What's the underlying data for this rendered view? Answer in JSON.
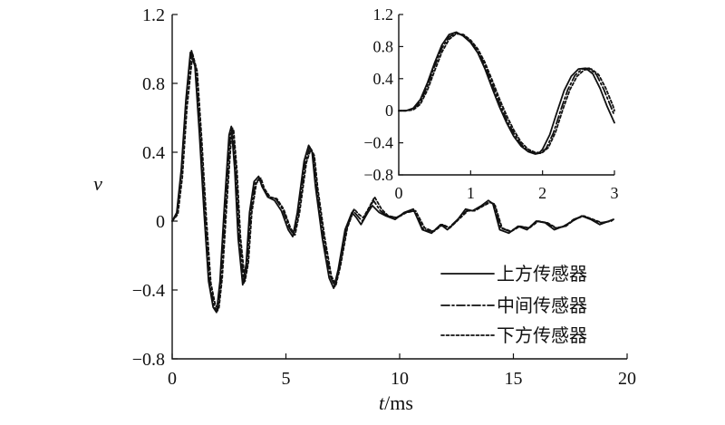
{
  "chart_data": [
    {
      "type": "line",
      "xlabel_italic": "t",
      "xlabel_unit": "/ms",
      "ylabel": "v",
      "xlim": [
        0,
        20
      ],
      "ylim": [
        -0.8,
        1.2
      ],
      "x_ticks": [
        0,
        5,
        10,
        15,
        20
      ],
      "y_ticks": [
        -0.8,
        -0.4,
        0,
        0.4,
        0.8,
        1.2
      ],
      "x_tick_labels": [
        "0",
        "5",
        "10",
        "15",
        "20"
      ],
      "y_tick_labels": [
        "−0.8",
        "−0.4",
        "0",
        "0.4",
        "0.8",
        "1.2"
      ],
      "grid": false,
      "legend_position": "bottom-right",
      "series": [
        {
          "name": "上方传感器",
          "style": "solid",
          "x": [
            0,
            0.2,
            0.4,
            0.6,
            0.8,
            1.0,
            1.2,
            1.4,
            1.6,
            1.8,
            1.95,
            2.1,
            2.3,
            2.5,
            2.6,
            2.75,
            2.9,
            3.1,
            3.25,
            3.4,
            3.6,
            3.8,
            3.95,
            4.2,
            4.5,
            4.8,
            5.1,
            5.3,
            5.5,
            5.8,
            6.0,
            6.15,
            6.3,
            6.6,
            6.9,
            7.1,
            7.3,
            7.6,
            7.9,
            8.1,
            8.3,
            8.6,
            8.8,
            9.1,
            9.4,
            9.8,
            10.2,
            10.6,
            11.0,
            11.4,
            11.8,
            12.1,
            12.5,
            12.9,
            13.2,
            13.6,
            13.9,
            14.1,
            14.4,
            14.8,
            15.2,
            15.6,
            16.0,
            16.4,
            16.8,
            17.2,
            17.6,
            18.0,
            18.4,
            18.8,
            19.2,
            19.4
          ],
          "y": [
            0,
            0.05,
            0.3,
            0.7,
            0.98,
            0.9,
            0.5,
            0.05,
            -0.35,
            -0.5,
            -0.53,
            -0.35,
            0.1,
            0.5,
            0.55,
            0.3,
            -0.1,
            -0.37,
            -0.25,
            0.05,
            0.23,
            0.26,
            0.2,
            0.14,
            0.12,
            0.06,
            -0.05,
            -0.09,
            0.05,
            0.35,
            0.44,
            0.4,
            0.2,
            -0.1,
            -0.33,
            -0.39,
            -0.28,
            -0.05,
            0.05,
            0.02,
            -0.02,
            0.05,
            0.09,
            0.05,
            0.03,
            0.01,
            0.05,
            0.07,
            -0.05,
            -0.07,
            -0.02,
            -0.05,
            0.0,
            0.07,
            0.06,
            0.09,
            0.12,
            0.1,
            -0.05,
            -0.07,
            -0.03,
            -0.05,
            0.0,
            -0.01,
            -0.05,
            -0.03,
            0.0,
            0.03,
            0.01,
            -0.02,
            0.0,
            0.01
          ]
        },
        {
          "name": "中间传感器",
          "style": "dashdot",
          "x": [
            0,
            0.2,
            0.4,
            0.6,
            0.85,
            1.05,
            1.25,
            1.45,
            1.65,
            1.85,
            2.0,
            2.15,
            2.35,
            2.55,
            2.65,
            2.8,
            2.95,
            3.15,
            3.3,
            3.45,
            3.65,
            3.85,
            4.0,
            4.25,
            4.55,
            4.85,
            5.15,
            5.35,
            5.55,
            5.85,
            6.05,
            6.2,
            6.35,
            6.65,
            6.95,
            7.15,
            7.35,
            7.65,
            7.95,
            8.15,
            8.35,
            8.65,
            8.85,
            9.15,
            9.45,
            9.85,
            10.25,
            10.65,
            11.05,
            11.45,
            11.85,
            12.15,
            12.55,
            12.95,
            13.25,
            13.65,
            13.95,
            14.15,
            14.45,
            14.85,
            15.25,
            15.65,
            16.05,
            16.45,
            16.85,
            17.25,
            17.65,
            18.05,
            18.45,
            18.85,
            19.25,
            19.4
          ],
          "y": [
            0,
            0.04,
            0.28,
            0.68,
            0.99,
            0.88,
            0.48,
            0.03,
            -0.36,
            -0.5,
            -0.52,
            -0.34,
            0.1,
            0.5,
            0.54,
            0.3,
            -0.09,
            -0.36,
            -0.25,
            0.05,
            0.22,
            0.25,
            0.19,
            0.14,
            0.13,
            0.07,
            -0.04,
            -0.08,
            0.05,
            0.34,
            0.43,
            0.39,
            0.2,
            -0.09,
            -0.32,
            -0.38,
            -0.27,
            -0.05,
            0.06,
            0.03,
            0.0,
            0.07,
            0.12,
            0.06,
            0.03,
            0.02,
            0.05,
            0.06,
            -0.05,
            -0.06,
            -0.02,
            -0.04,
            0.01,
            0.06,
            0.06,
            0.09,
            0.11,
            0.1,
            -0.04,
            -0.06,
            -0.03,
            -0.04,
            0.0,
            -0.01,
            -0.04,
            -0.03,
            0.01,
            0.03,
            0.01,
            -0.01,
            0.0,
            0.01
          ]
        },
        {
          "name": "下方传感器",
          "style": "dotted",
          "x": [
            0,
            0.25,
            0.45,
            0.65,
            0.9,
            1.1,
            1.3,
            1.5,
            1.7,
            1.9,
            2.05,
            2.2,
            2.4,
            2.6,
            2.7,
            2.85,
            3.0,
            3.2,
            3.35,
            3.5,
            3.7,
            3.9,
            4.05,
            4.3,
            4.6,
            4.9,
            5.2,
            5.4,
            5.6,
            5.9,
            6.1,
            6.25,
            6.4,
            6.7,
            7.0,
            7.2,
            7.4,
            7.7,
            8.0,
            8.2,
            8.4,
            8.7,
            8.9,
            9.2,
            9.5,
            9.9,
            10.3,
            10.7,
            11.1,
            11.5,
            11.9,
            12.2,
            12.6,
            13.0,
            13.3,
            13.7,
            14.0,
            14.2,
            14.5,
            14.9,
            15.3,
            15.7,
            16.1,
            16.5,
            16.9,
            17.3,
            17.7,
            18.1,
            18.5,
            18.9,
            19.3,
            19.4
          ],
          "y": [
            0,
            0.04,
            0.26,
            0.66,
            0.97,
            0.87,
            0.47,
            0.02,
            -0.36,
            -0.49,
            -0.51,
            -0.33,
            0.1,
            0.49,
            0.53,
            0.29,
            -0.09,
            -0.35,
            -0.24,
            0.05,
            0.22,
            0.25,
            0.19,
            0.14,
            0.13,
            0.07,
            -0.04,
            -0.08,
            0.05,
            0.34,
            0.42,
            0.38,
            0.19,
            -0.09,
            -0.32,
            -0.37,
            -0.26,
            -0.04,
            0.07,
            0.04,
            0.02,
            0.09,
            0.14,
            0.07,
            0.03,
            0.02,
            0.05,
            0.06,
            -0.04,
            -0.06,
            -0.02,
            -0.04,
            0.01,
            0.06,
            0.06,
            0.09,
            0.11,
            0.09,
            -0.04,
            -0.06,
            -0.03,
            -0.04,
            0.0,
            -0.01,
            -0.04,
            -0.03,
            0.01,
            0.03,
            0.01,
            -0.01,
            0.0,
            0.01
          ]
        }
      ]
    },
    {
      "type": "line",
      "role": "inset",
      "xlim": [
        0,
        3
      ],
      "ylim": [
        -0.8,
        1.2
      ],
      "x_ticks": [
        0,
        1,
        2,
        3
      ],
      "y_ticks": [
        -0.8,
        -0.4,
        0,
        0.4,
        0.8,
        1.2
      ],
      "x_tick_labels": [
        "0",
        "1",
        "2",
        "3"
      ],
      "y_tick_labels": [
        "−0.8",
        "−0.4",
        "0",
        "0.4",
        "0.8",
        "1.2"
      ],
      "grid": false,
      "series": [
        {
          "name": "上方传感器",
          "style": "solid",
          "x": [
            0,
            0.1,
            0.2,
            0.3,
            0.4,
            0.5,
            0.6,
            0.7,
            0.8,
            0.9,
            1.0,
            1.1,
            1.2,
            1.3,
            1.4,
            1.5,
            1.6,
            1.7,
            1.8,
            1.9,
            1.95,
            2.0,
            2.1,
            2.2,
            2.3,
            2.4,
            2.5,
            2.6,
            2.7,
            2.8,
            2.9,
            3.0
          ],
          "y": [
            0,
            0.0,
            0.03,
            0.14,
            0.35,
            0.6,
            0.82,
            0.95,
            0.98,
            0.93,
            0.85,
            0.72,
            0.52,
            0.28,
            0.05,
            -0.15,
            -0.32,
            -0.44,
            -0.51,
            -0.54,
            -0.53,
            -0.48,
            -0.3,
            -0.02,
            0.25,
            0.43,
            0.52,
            0.53,
            0.46,
            0.28,
            0.05,
            -0.15
          ]
        },
        {
          "name": "中间传感器",
          "style": "dashdot",
          "x": [
            0,
            0.1,
            0.2,
            0.3,
            0.4,
            0.5,
            0.6,
            0.7,
            0.8,
            0.9,
            1.0,
            1.1,
            1.2,
            1.3,
            1.4,
            1.5,
            1.6,
            1.7,
            1.8,
            1.9,
            1.97,
            2.05,
            2.15,
            2.25,
            2.35,
            2.45,
            2.55,
            2.65,
            2.75,
            2.85,
            2.95,
            3.0
          ],
          "y": [
            0,
            0.0,
            0.02,
            0.11,
            0.31,
            0.56,
            0.78,
            0.92,
            0.97,
            0.94,
            0.86,
            0.74,
            0.56,
            0.33,
            0.1,
            -0.11,
            -0.28,
            -0.42,
            -0.5,
            -0.53,
            -0.53,
            -0.47,
            -0.28,
            0.0,
            0.26,
            0.44,
            0.52,
            0.53,
            0.45,
            0.27,
            0.05,
            -0.06
          ]
        },
        {
          "name": "下方传感器",
          "style": "dotted",
          "x": [
            0,
            0.1,
            0.2,
            0.3,
            0.4,
            0.5,
            0.6,
            0.7,
            0.8,
            0.9,
            1.0,
            1.1,
            1.2,
            1.3,
            1.4,
            1.5,
            1.6,
            1.7,
            1.8,
            1.9,
            2.0,
            2.08,
            2.18,
            2.28,
            2.38,
            2.48,
            2.58,
            2.68,
            2.78,
            2.88,
            2.98,
            3.0
          ],
          "y": [
            0,
            0.0,
            0.01,
            0.08,
            0.26,
            0.5,
            0.73,
            0.89,
            0.96,
            0.95,
            0.88,
            0.77,
            0.6,
            0.38,
            0.15,
            -0.06,
            -0.24,
            -0.39,
            -0.48,
            -0.52,
            -0.52,
            -0.46,
            -0.27,
            0.01,
            0.26,
            0.43,
            0.51,
            0.52,
            0.45,
            0.28,
            0.06,
            0.0
          ]
        }
      ]
    }
  ]
}
